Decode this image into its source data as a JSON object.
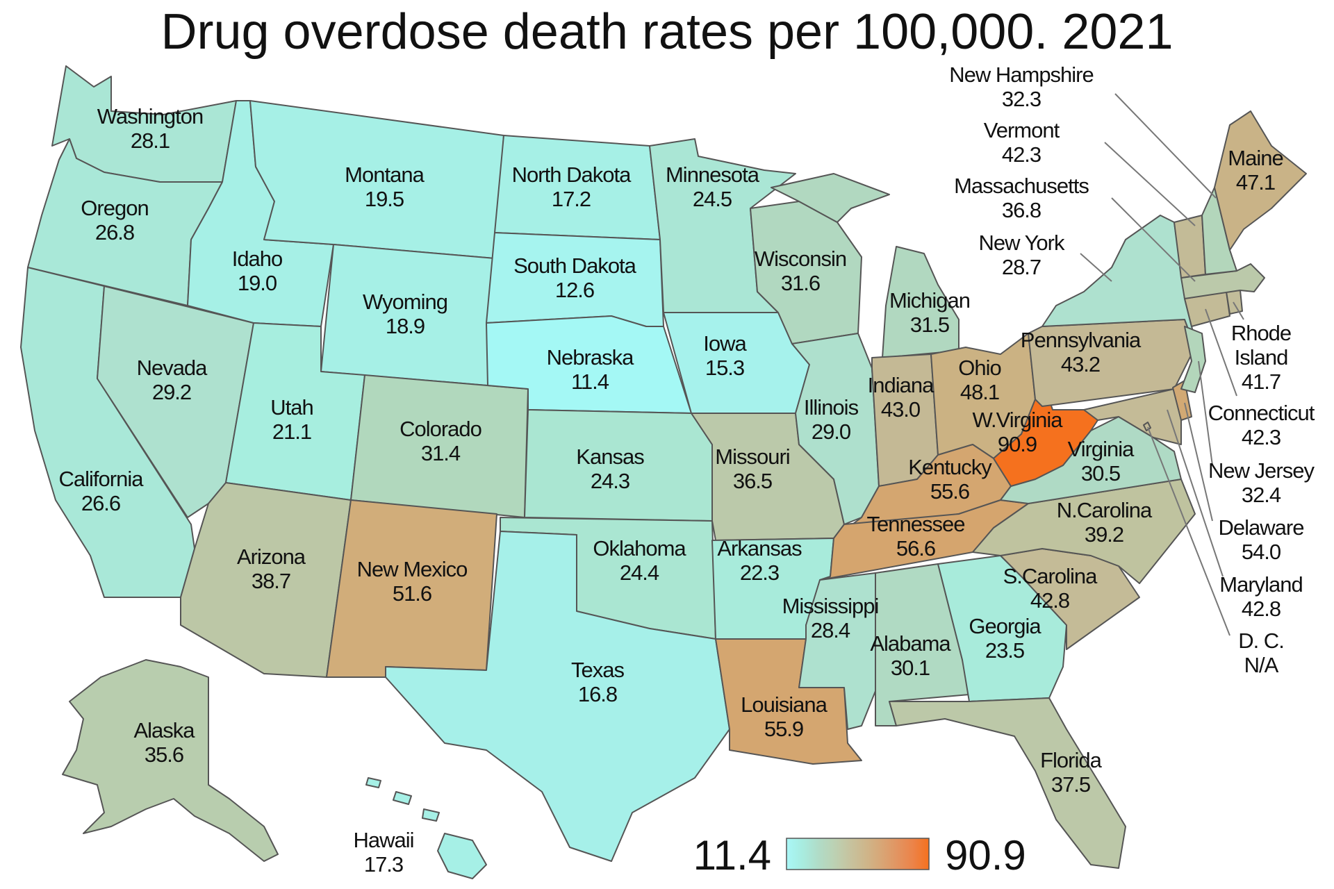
{
  "title": "Drug overdose death rates per 100,000. 2021",
  "legend": {
    "min_label": "11.4",
    "max_label": "90.9",
    "stops": [
      "#a9f7f7",
      "#a8ece0",
      "#b0dcc8",
      "#bcd2b4",
      "#c6c39f",
      "#ceb68b",
      "#d8a676",
      "#e29461",
      "#ec8348",
      "#f5711e"
    ]
  },
  "states": [
    {
      "id": "WA",
      "name": "Washington",
      "value": "28.1",
      "fill": "#aae6d5"
    },
    {
      "id": "OR",
      "name": "Oregon",
      "value": "26.8",
      "fill": "#a9e8d8"
    },
    {
      "id": "CA",
      "name": "California",
      "value": "26.6",
      "fill": "#a9e8d8"
    },
    {
      "id": "NV",
      "name": "Nevada",
      "value": "29.2",
      "fill": "#aee1cf"
    },
    {
      "id": "ID",
      "name": "Idaho",
      "value": "19.0",
      "fill": "#a6f0e6"
    },
    {
      "id": "MT",
      "name": "Montana",
      "value": "19.5",
      "fill": "#a6f0e6"
    },
    {
      "id": "WY",
      "name": "Wyoming",
      "value": "18.9",
      "fill": "#a6f0e6"
    },
    {
      "id": "UT",
      "name": "Utah",
      "value": "21.1",
      "fill": "#a7eedf"
    },
    {
      "id": "AZ",
      "name": "Arizona",
      "value": "38.7",
      "fill": "#bcc7a6"
    },
    {
      "id": "CO",
      "name": "Colorado",
      "value": "31.4",
      "fill": "#b1d8bd"
    },
    {
      "id": "NM",
      "name": "New Mexico",
      "value": "51.6",
      "fill": "#d1ad7a"
    },
    {
      "id": "ND",
      "name": "North Dakota",
      "value": "17.2",
      "fill": "#a6f0e6"
    },
    {
      "id": "SD",
      "name": "South Dakota",
      "value": "12.6",
      "fill": "#a6f4ef"
    },
    {
      "id": "NE",
      "name": "Nebraska",
      "value": "11.4",
      "fill": "#a4f8f5"
    },
    {
      "id": "KS",
      "name": "Kansas",
      "value": "24.3",
      "fill": "#aae6d2"
    },
    {
      "id": "OK",
      "name": "Oklahoma",
      "value": "24.4",
      "fill": "#aae6d2"
    },
    {
      "id": "TX",
      "name": "Texas",
      "value": "16.8",
      "fill": "#a6f0e9"
    },
    {
      "id": "MN",
      "name": "Minnesota",
      "value": "24.5",
      "fill": "#aae6d5"
    },
    {
      "id": "IA",
      "name": "Iowa",
      "value": "15.3",
      "fill": "#a6f2ec"
    },
    {
      "id": "MO",
      "name": "Missouri",
      "value": "36.5",
      "fill": "#bbc9aa"
    },
    {
      "id": "AR",
      "name": "Arkansas",
      "value": "22.3",
      "fill": "#a8ebdb"
    },
    {
      "id": "LA",
      "name": "Louisiana",
      "value": "55.9",
      "fill": "#d4a670"
    },
    {
      "id": "WI",
      "name": "Wisconsin",
      "value": "31.6",
      "fill": "#b1d8c0"
    },
    {
      "id": "IL",
      "name": "Illinois",
      "value": "29.0",
      "fill": "#aee0cd"
    },
    {
      "id": "MI",
      "name": "Michigan",
      "value": "31.5",
      "fill": "#b1d8c0"
    },
    {
      "id": "IN",
      "name": "Indiana",
      "value": "43.0",
      "fill": "#c4b995"
    },
    {
      "id": "OH",
      "name": "Ohio",
      "value": "48.1",
      "fill": "#cbb283"
    },
    {
      "id": "KY",
      "name": "Kentucky",
      "value": "55.6",
      "fill": "#d4a670"
    },
    {
      "id": "TN",
      "name": "Tennessee",
      "value": "56.6",
      "fill": "#d5a56e"
    },
    {
      "id": "MS",
      "name": "Mississippi",
      "value": "28.4",
      "fill": "#aee1cf"
    },
    {
      "id": "AL",
      "name": "Alabama",
      "value": "30.1",
      "fill": "#b0dac3"
    },
    {
      "id": "GA",
      "name": "Georgia",
      "value": "23.5",
      "fill": "#a8ebdb"
    },
    {
      "id": "FL",
      "name": "Florida",
      "value": "37.5",
      "fill": "#bcc8a8"
    },
    {
      "id": "SC",
      "name": "S.Carolina",
      "value": "42.8",
      "fill": "#c4bb97"
    },
    {
      "id": "NC",
      "name": "N.Carolina",
      "value": "39.2",
      "fill": "#bfc39f"
    },
    {
      "id": "VA",
      "name": "Virginia",
      "value": "30.5",
      "fill": "#afdac5"
    },
    {
      "id": "WV",
      "name": "W.Virginia",
      "value": "90.9",
      "fill": "#f5711e"
    },
    {
      "id": "PA",
      "name": "Pennsylvania",
      "value": "43.2",
      "fill": "#c4b995"
    },
    {
      "id": "NY",
      "name": "New York",
      "value": "28.7",
      "fill": "#aee1cf"
    },
    {
      "id": "ME",
      "name": "Maine",
      "value": "47.1",
      "fill": "#c9b387"
    },
    {
      "id": "AK",
      "name": "Alaska",
      "value": "35.6",
      "fill": "#b8cdae"
    },
    {
      "id": "HI",
      "name": "Hawaii",
      "value": "17.3",
      "fill": "#a6f0e6"
    },
    {
      "id": "NH",
      "name": "New Hampshire",
      "value": "32.3",
      "fill": "#b3d6bb"
    },
    {
      "id": "VT",
      "name": "Vermont",
      "value": "42.3",
      "fill": "#c3bb97"
    },
    {
      "id": "MA",
      "name": "Massachusetts",
      "value": "36.8",
      "fill": "#bbc9aa"
    },
    {
      "id": "RI",
      "name": "Rhode",
      "name2": "Island",
      "value": "41.7",
      "fill": "#c2bd9a"
    },
    {
      "id": "CT",
      "name": "Connecticut",
      "value": "42.3",
      "fill": "#c3bb97"
    },
    {
      "id": "NJ",
      "name": "New Jersey",
      "value": "32.4",
      "fill": "#b3d6bb"
    },
    {
      "id": "DE",
      "name": "Delaware",
      "value": "54.0",
      "fill": "#d2a974"
    },
    {
      "id": "MD",
      "name": "Maryland",
      "value": "42.8",
      "fill": "#c4bb97"
    },
    {
      "id": "DC",
      "name": "D. C.",
      "value": "N/A",
      "fill": "#c4bb97"
    }
  ]
}
